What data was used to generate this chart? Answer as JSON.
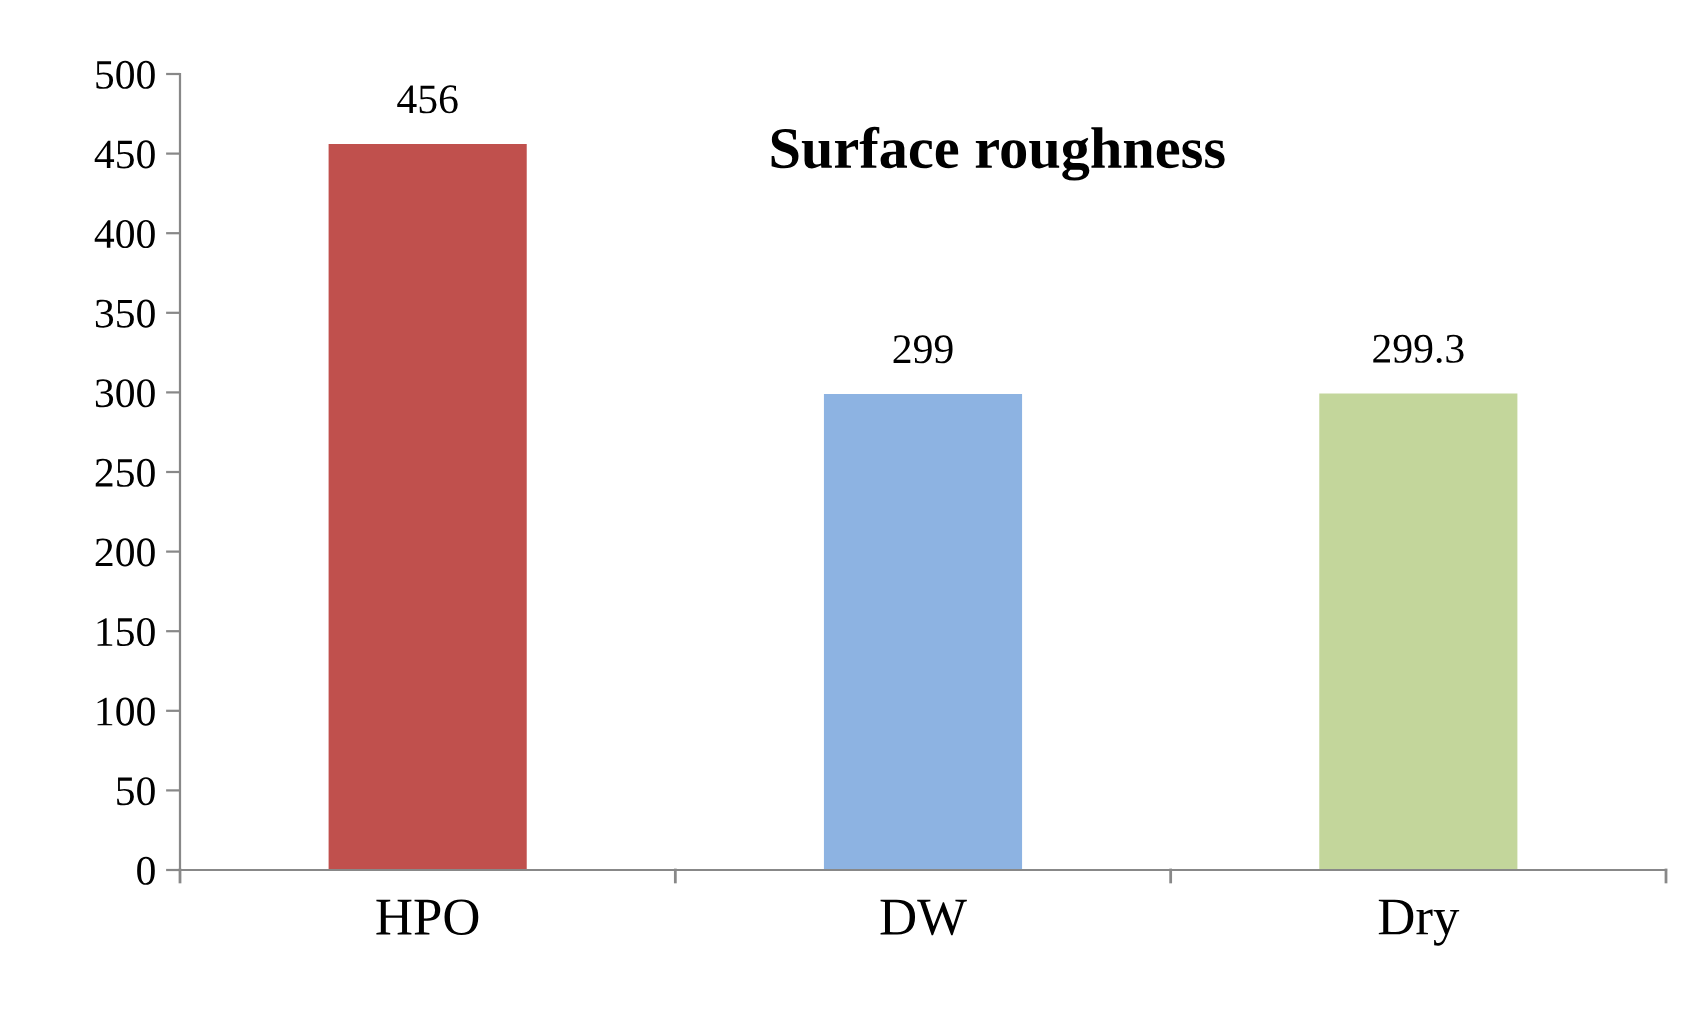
{
  "chart_data": {
    "type": "bar",
    "title": "Surface roughness",
    "categories": [
      "HPO",
      "DW",
      "Dry"
    ],
    "values": [
      456,
      299,
      299.3
    ],
    "colors": [
      "#c0504d",
      "#8db3e2",
      "#c3d69b"
    ],
    "ylim": [
      0,
      500
    ],
    "yticks": [
      0,
      50,
      100,
      150,
      200,
      250,
      300,
      350,
      400,
      450,
      500
    ],
    "data_labels": true,
    "grid": false,
    "legend": false
  }
}
